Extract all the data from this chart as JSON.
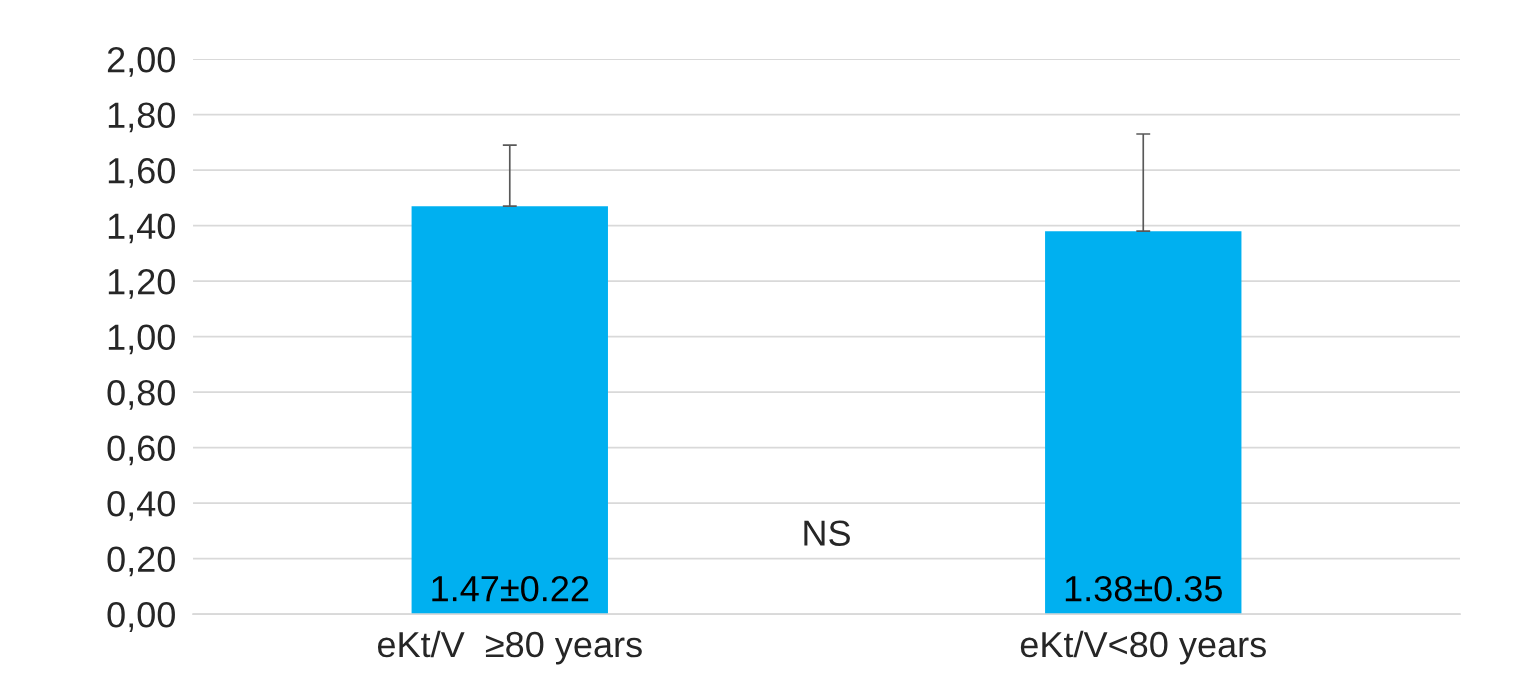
{
  "chart_data": {
    "type": "bar",
    "categories": [
      "eKt/V  ≥80 years",
      "eKt/V<80 years"
    ],
    "values": [
      1.47,
      1.38
    ],
    "color": "#00b0f0",
    "errors": [
      [
        1.47,
        1.69
      ],
      [
        1.38,
        1.73
      ]
    ],
    "value_labels": [
      "1.47±0.22",
      "1.38±0.35"
    ],
    "annotations": [
      "NS"
    ],
    "ylim": [
      0,
      2
    ],
    "yticks": [
      {
        "value": 0,
        "label": "0,00"
      },
      {
        "value": 0.2,
        "label": "0,20"
      },
      {
        "value": 0.4,
        "label": "0,40"
      },
      {
        "value": 0.6,
        "label": "0,60"
      },
      {
        "value": 0.8,
        "label": "0,80"
      },
      {
        "value": 1.0,
        "label": "1,00"
      },
      {
        "value": 1.2,
        "label": "1,20"
      },
      {
        "value": 1.4,
        "label": "1,40"
      },
      {
        "value": 1.6,
        "label": "1,60"
      },
      {
        "value": 1.8,
        "label": "1,80"
      },
      {
        "value": 2.0,
        "label": "2,00"
      }
    ],
    "grid": "y"
  }
}
